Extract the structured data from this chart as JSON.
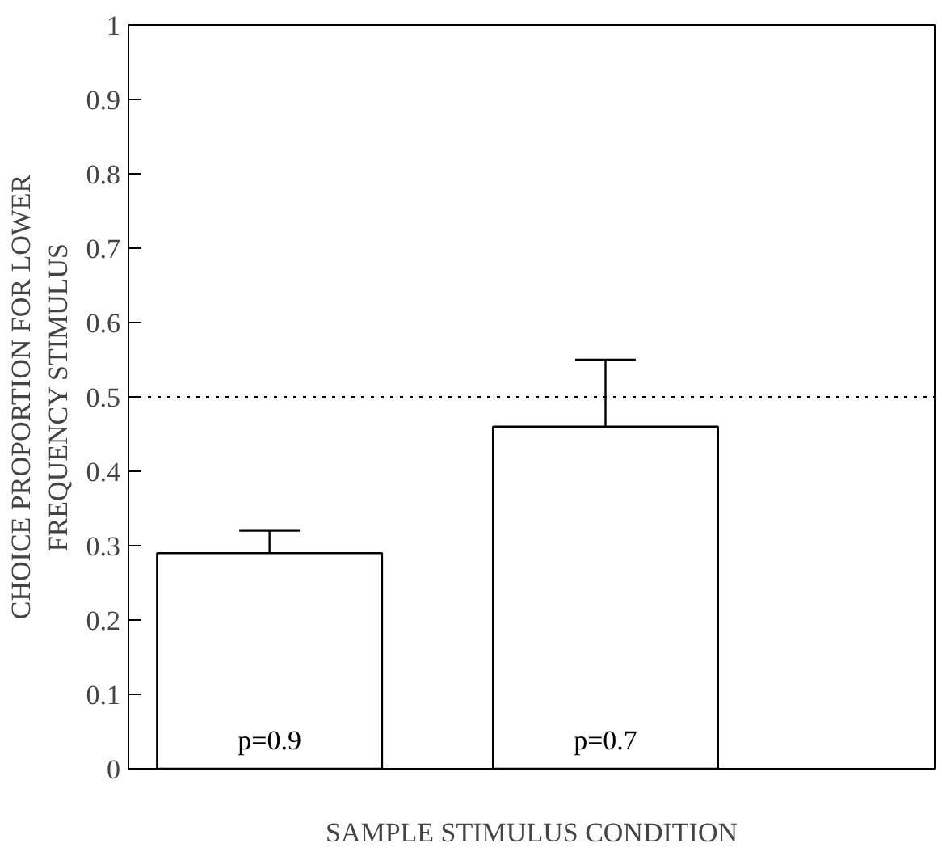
{
  "chart_data": {
    "type": "bar",
    "xlabel": "SAMPLE STIMULUS CONDITION",
    "ylabel": "CHOICE PROPORTION FOR LOWER\nFREQUENCY STIMULUS",
    "categories": [
      "p=0.9",
      "p=0.7"
    ],
    "values": [
      0.29,
      0.46
    ],
    "errors": [
      [
        0.29,
        0.32
      ],
      [
        0.46,
        0.55
      ]
    ],
    "color": "#ffffff",
    "ylim": [
      0,
      1
    ],
    "yticks": [
      0,
      0.1,
      0.2,
      0.3,
      0.4,
      0.5,
      0.6,
      0.7,
      0.8,
      0.9,
      1
    ],
    "ref_lines": [
      {
        "axis": "y",
        "value": 0.5,
        "line_style": "dotted",
        "color": "#000000"
      }
    ],
    "grid": false
  }
}
